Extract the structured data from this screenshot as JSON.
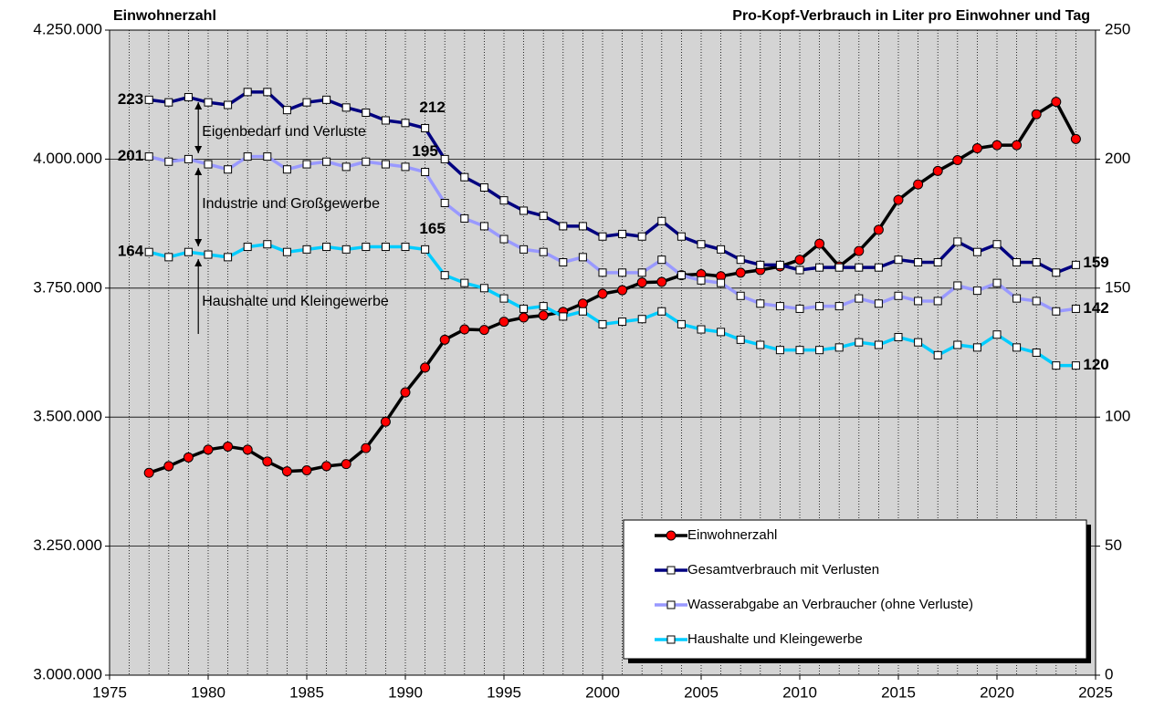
{
  "chart_data": {
    "type": "line",
    "y_label": "Einwohnerzahl",
    "y2_label": "Pro-Kopf-Verbrauch in Liter pro Einwohner und Tag",
    "x": [
      1977,
      1978,
      1979,
      1980,
      1981,
      1982,
      1983,
      1984,
      1985,
      1986,
      1987,
      1988,
      1989,
      1990,
      1991,
      1992,
      1993,
      1994,
      1995,
      1996,
      1997,
      1998,
      1999,
      2000,
      2001,
      2002,
      2003,
      2004,
      2005,
      2006,
      2007,
      2008,
      2009,
      2010,
      2011,
      2012,
      2013,
      2014,
      2015,
      2016,
      2017,
      2018,
      2019,
      2020,
      2021,
      2022,
      2023,
      2024
    ],
    "xlim": [
      1975,
      2025
    ],
    "xticks": [
      1975,
      1980,
      1985,
      1990,
      1995,
      2000,
      2005,
      2010,
      2015,
      2020,
      2025
    ],
    "ylim": [
      3000000,
      4250000
    ],
    "yticks": [
      {
        "value": 3000000,
        "label": "3.000.000"
      },
      {
        "value": 3250000,
        "label": "3.250.000"
      },
      {
        "value": 3500000,
        "label": "3.500.000"
      },
      {
        "value": 3750000,
        "label": "3.750.000"
      },
      {
        "value": 4000000,
        "label": "4.000.000"
      },
      {
        "value": 4250000,
        "label": "4.250.000"
      }
    ],
    "y2lim": [
      0,
      250
    ],
    "y2ticks": [
      0,
      50,
      100,
      150,
      200,
      250
    ],
    "grid": true,
    "legend": "lower right",
    "series": [
      {
        "name": "Einwohnerzahl",
        "color": "#000000",
        "marker_color": "#ff0000",
        "marker": "circle",
        "axis": "y",
        "values": [
          3392000,
          3405000,
          3422000,
          3437000,
          3443000,
          3437000,
          3414000,
          3395000,
          3397000,
          3405000,
          3409000,
          3440000,
          3491000,
          3548000,
          3596000,
          3650000,
          3670000,
          3669000,
          3685000,
          3693000,
          3697000,
          3704000,
          3720000,
          3739000,
          3746000,
          3761000,
          3762000,
          3775000,
          3777000,
          3773000,
          3780000,
          3785000,
          3792000,
          3805000,
          3836000,
          3792000,
          3822000,
          3863000,
          3921000,
          3951000,
          3977000,
          3998000,
          4021000,
          4027000,
          4027000,
          4087000,
          4111000,
          4039000
        ]
      },
      {
        "name": "Gesamtverbrauch mit Verlusten",
        "color": "#000080",
        "marker_color": "#ffffff",
        "marker": "square",
        "axis": "y2",
        "values": [
          223,
          222,
          224,
          222,
          221,
          226,
          226,
          219,
          222,
          223,
          220,
          218,
          215,
          214,
          212,
          200,
          193,
          189,
          184,
          180,
          178,
          174,
          174,
          170,
          171,
          170,
          176,
          170,
          167,
          165,
          161,
          159,
          159,
          157,
          158,
          158,
          158,
          158,
          161,
          160,
          160,
          168,
          164,
          167,
          160,
          160,
          156,
          159
        ],
        "value_labels": [
          "223",
          null,
          null,
          null,
          null,
          null,
          null,
          null,
          null,
          null,
          null,
          null,
          null,
          null,
          "212",
          null,
          null,
          null,
          null,
          null,
          null,
          null,
          null,
          null,
          null,
          null,
          null,
          null,
          null,
          null,
          null,
          null,
          null,
          null,
          null,
          null,
          null,
          null,
          null,
          null,
          null,
          null,
          null,
          null,
          null,
          null,
          null,
          "159"
        ]
      },
      {
        "name": "Wasserabgabe an Verbraucher (ohne Verluste)",
        "color": "#9999ff",
        "marker_color": "#ffffff",
        "marker": "square",
        "axis": "y2",
        "values": [
          201,
          199,
          200,
          198,
          196,
          201,
          201,
          196,
          198,
          199,
          197,
          199,
          198,
          197,
          195,
          183,
          177,
          174,
          169,
          165,
          164,
          160,
          162,
          156,
          156,
          156,
          161,
          155,
          153,
          152,
          147,
          144,
          143,
          142,
          143,
          143,
          146,
          144,
          147,
          145,
          145,
          151,
          149,
          152,
          146,
          145,
          141,
          142
        ],
        "value_labels": [
          "201",
          null,
          null,
          null,
          null,
          null,
          null,
          null,
          null,
          null,
          null,
          null,
          null,
          null,
          "195",
          null,
          null,
          null,
          null,
          null,
          null,
          null,
          null,
          null,
          null,
          null,
          null,
          null,
          null,
          null,
          null,
          null,
          null,
          null,
          null,
          null,
          null,
          null,
          null,
          null,
          null,
          null,
          null,
          null,
          null,
          null,
          null,
          "142"
        ]
      },
      {
        "name": "Haushalte und Kleingewerbe",
        "color": "#00ccff",
        "marker_color": "#ffffff",
        "marker": "square",
        "axis": "y2",
        "values": [
          164,
          162,
          164,
          163,
          162,
          166,
          167,
          164,
          165,
          166,
          165,
          166,
          166,
          166,
          165,
          155,
          152,
          150,
          146,
          142,
          143,
          139,
          141,
          136,
          137,
          138,
          141,
          136,
          134,
          133,
          130,
          128,
          126,
          126,
          126,
          127,
          129,
          128,
          131,
          129,
          124,
          128,
          127,
          132,
          127,
          125,
          120,
          120
        ],
        "value_labels": [
          "164",
          null,
          null,
          null,
          null,
          null,
          null,
          null,
          null,
          null,
          null,
          null,
          null,
          null,
          "165",
          null,
          null,
          null,
          null,
          null,
          null,
          null,
          null,
          null,
          null,
          null,
          null,
          null,
          null,
          null,
          null,
          null,
          null,
          null,
          null,
          null,
          null,
          null,
          null,
          null,
          null,
          null,
          null,
          null,
          null,
          null,
          null,
          "120"
        ]
      }
    ],
    "annotations": [
      "Eigenbedarf und Verluste",
      "Industrie und Großgewerbe",
      "Haushalte und Kleingewerbe"
    ]
  }
}
